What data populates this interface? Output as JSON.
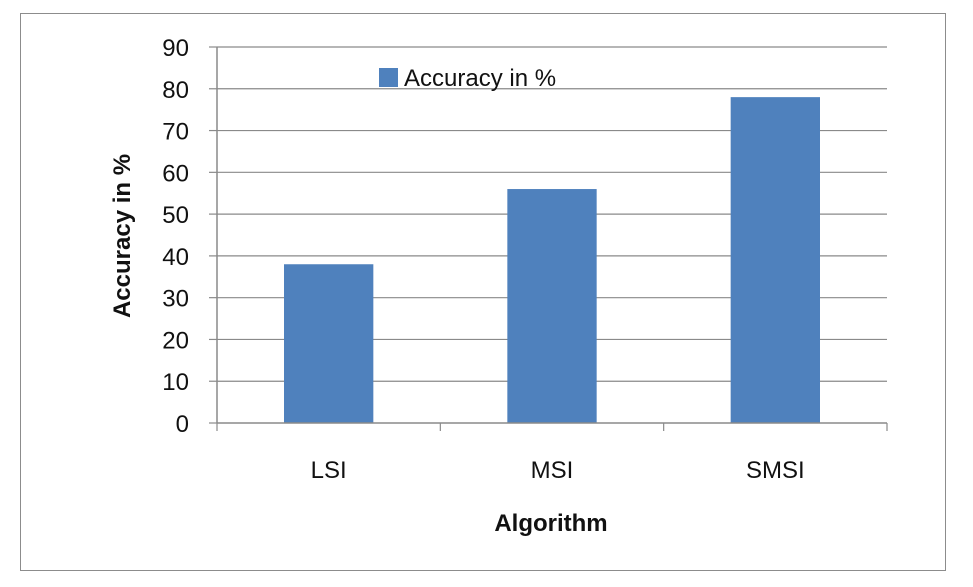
{
  "chart_data": {
    "type": "bar",
    "categories": [
      "LSI",
      "MSI",
      "SMSI"
    ],
    "series": [
      {
        "name": "Accuracy in %",
        "values": [
          38,
          56,
          78
        ],
        "color": "#4f81bd"
      }
    ],
    "xlabel": "Algorithm",
    "ylabel": "Accuracy in %",
    "ylim": [
      0,
      90
    ],
    "yticks": [
      0,
      10,
      20,
      30,
      40,
      50,
      60,
      70,
      80,
      90
    ],
    "grid": true,
    "legend_position": "top-center"
  }
}
